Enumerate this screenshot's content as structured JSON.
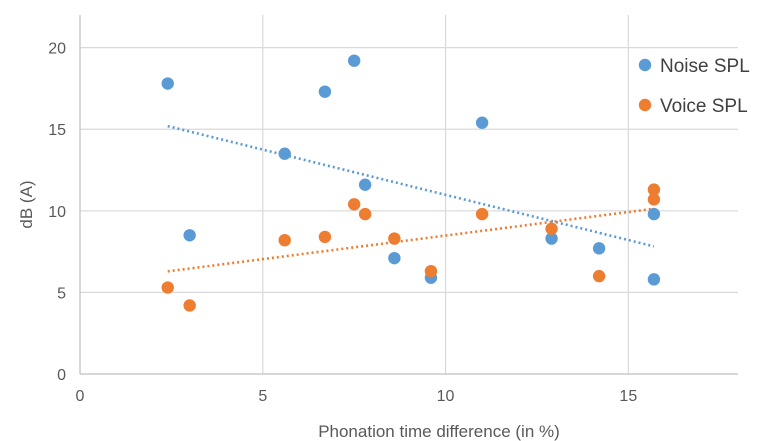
{
  "chart_data": {
    "type": "scatter",
    "title": "",
    "xlabel": "Phonation time difference (in %)",
    "ylabel": "dB (A)",
    "xlim": [
      0,
      18
    ],
    "ylim": [
      0,
      22
    ],
    "x_ticks": [
      0,
      5,
      10,
      15
    ],
    "y_ticks": [
      0,
      5,
      10,
      15,
      20
    ],
    "grid": true,
    "legend_position": "right",
    "series": [
      {
        "name": "Noise SPL",
        "color": "#5b9bd5",
        "trendline": "linear",
        "points": [
          {
            "x": 2.4,
            "y": 17.8
          },
          {
            "x": 3.0,
            "y": 8.5
          },
          {
            "x": 5.6,
            "y": 13.5
          },
          {
            "x": 6.7,
            "y": 17.3
          },
          {
            "x": 7.5,
            "y": 19.2
          },
          {
            "x": 7.8,
            "y": 11.6
          },
          {
            "x": 8.6,
            "y": 7.1
          },
          {
            "x": 9.6,
            "y": 5.9
          },
          {
            "x": 11.0,
            "y": 15.4
          },
          {
            "x": 12.9,
            "y": 8.3
          },
          {
            "x": 14.2,
            "y": 7.7
          },
          {
            "x": 15.7,
            "y": 9.8
          },
          {
            "x": 15.7,
            "y": 5.8
          }
        ]
      },
      {
        "name": "Voice SPL",
        "color": "#ed7d31",
        "trendline": "linear",
        "points": [
          {
            "x": 2.4,
            "y": 5.3
          },
          {
            "x": 3.0,
            "y": 4.2
          },
          {
            "x": 5.6,
            "y": 8.2
          },
          {
            "x": 6.7,
            "y": 8.4
          },
          {
            "x": 7.5,
            "y": 10.4
          },
          {
            "x": 7.8,
            "y": 9.8
          },
          {
            "x": 8.6,
            "y": 8.3
          },
          {
            "x": 9.6,
            "y": 6.3
          },
          {
            "x": 11.0,
            "y": 9.8
          },
          {
            "x": 12.9,
            "y": 8.9
          },
          {
            "x": 14.2,
            "y": 6.0
          },
          {
            "x": 15.7,
            "y": 11.3
          },
          {
            "x": 15.7,
            "y": 10.7
          }
        ]
      }
    ]
  }
}
